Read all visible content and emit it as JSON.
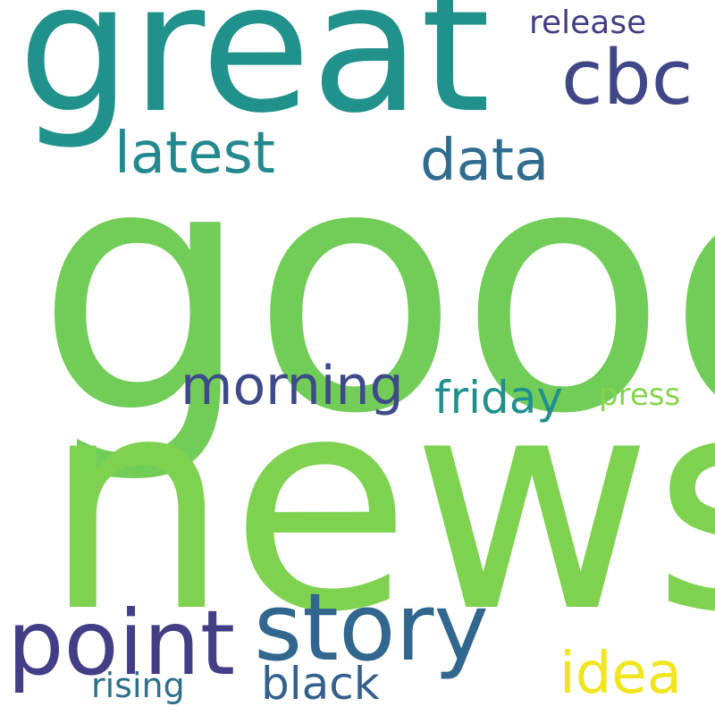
{
  "cloud": {
    "words": [
      {
        "key": "good",
        "text": "good",
        "color": "#72cd58"
      },
      {
        "key": "news",
        "text": "news",
        "color": "#7fd250"
      },
      {
        "key": "great",
        "text": "great",
        "color": "#21918c"
      },
      {
        "key": "cbc",
        "text": "cbc",
        "color": "#3f4788"
      },
      {
        "key": "release",
        "text": "release",
        "color": "#433e85"
      },
      {
        "key": "latest",
        "text": "latest",
        "color": "#23898e"
      },
      {
        "key": "data",
        "text": "data",
        "color": "#2f6c8e"
      },
      {
        "key": "morning",
        "text": "morning",
        "color": "#3e4a89"
      },
      {
        "key": "friday",
        "text": "friday",
        "color": "#21908d"
      },
      {
        "key": "press",
        "text": "press",
        "color": "#84d44b"
      },
      {
        "key": "point",
        "text": "point",
        "color": "#433e85"
      },
      {
        "key": "story",
        "text": "story",
        "color": "#31668e"
      },
      {
        "key": "idea",
        "text": "idea",
        "color": "#f1e51d"
      },
      {
        "key": "black",
        "text": "black",
        "color": "#34608d"
      },
      {
        "key": "rising",
        "text": "rising",
        "color": "#2d708e"
      }
    ]
  }
}
